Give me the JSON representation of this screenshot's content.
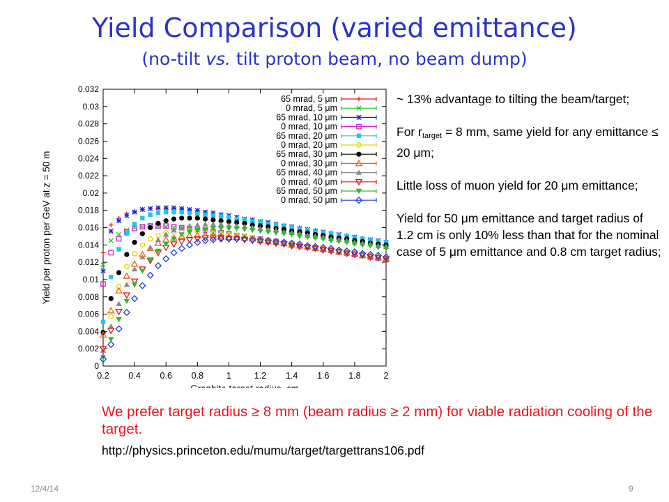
{
  "slide": {
    "title": "Yield Comparison (varied emittance)",
    "subtitle_pre": "(no-tilt ",
    "subtitle_vs": "vs.",
    "subtitle_post": " tilt proton beam, no beam dump)",
    "notes": {
      "n1": "~ 13% advantage to tilting the beam/target;",
      "n2a": "For r",
      "n2sub": "target",
      "n2b": " = 8 mm, same yield for any emittance ≤ 20  μm;",
      "n3": "Little loss of muon yield for 20 μm emittance;",
      "n4": "Yield for 50 μm emittance and target radius of 1.2 cm is only 10% less than that for the nominal case of 5 μm emittance and 0.8 cm target radius;"
    },
    "conclusion": "We prefer target radius ≥ 8 mm (beam radius  ≥ 2 mm) for viable radiation cooling of the target.",
    "reference": "http://physics.princeton.edu/mumu/target/targettrans106.pdf",
    "footer_date": "12/4/14",
    "page_number": "9"
  },
  "chart_data": {
    "type": "scatter",
    "xlabel": "Graphite target radius, cm",
    "ylabel": "Yield per proton per GeV at z = 50 m",
    "xlim": [
      0.2,
      2.0
    ],
    "ylim": [
      0,
      0.032
    ],
    "xticks": [
      0.2,
      0.4,
      0.6,
      0.8,
      1,
      1.2,
      1.4,
      1.6,
      1.8,
      2
    ],
    "xtick_labels": [
      "0.2",
      "0.4",
      "0.6",
      "0.8",
      "1",
      "1.2",
      "1.4",
      "1.6",
      "1.8",
      "2"
    ],
    "yticks": [
      0,
      0.002,
      0.004,
      0.006,
      0.008,
      0.01,
      0.012,
      0.014,
      0.016,
      0.018,
      0.02,
      0.022,
      0.024,
      0.026,
      0.028,
      0.03,
      0.032
    ],
    "ytick_labels": [
      "0",
      "0.002",
      "0.004",
      "0.006",
      "0.008",
      "0.01",
      "0.012",
      "0.014",
      "0.016",
      "0.018",
      "0.02",
      "0.022",
      "0.024",
      "0.026",
      "0.028",
      "0.03",
      "0.032"
    ],
    "legend_position": "top-right",
    "grid": false,
    "x": [
      0.2,
      0.25,
      0.3,
      0.35,
      0.4,
      0.45,
      0.5,
      0.55,
      0.6,
      0.65,
      0.7,
      0.75,
      0.8,
      0.85,
      0.9,
      0.95,
      1.0,
      1.05,
      1.1,
      1.15,
      1.2,
      1.25,
      1.3,
      1.35,
      1.4,
      1.45,
      1.5,
      1.55,
      1.6,
      1.65,
      1.7,
      1.75,
      1.8,
      1.85,
      1.9,
      1.95,
      2.0
    ],
    "series": [
      {
        "name": "65 mrad, 5 μm",
        "color": "#e8141c",
        "marker": "plus",
        "values": [
          0.0131,
          0.0163,
          0.0171,
          0.0176,
          0.0179,
          0.0181,
          0.0182,
          0.0182,
          0.0182,
          0.0182,
          0.0181,
          0.018,
          0.0179,
          0.0178,
          0.0176,
          0.0175,
          0.0173,
          0.0172,
          0.017,
          0.0169,
          0.0167,
          0.0166,
          0.0164,
          0.0163,
          0.0161,
          0.016,
          0.0158,
          0.0157,
          0.0155,
          0.0154,
          0.0152,
          0.0151,
          0.0149,
          0.0148,
          0.0146,
          0.0145,
          0.0143
        ]
      },
      {
        "name": "0 mrad, 5 μm",
        "color": "#20c020",
        "marker": "x",
        "values": [
          0.0117,
          0.0145,
          0.0152,
          0.0157,
          0.016,
          0.0161,
          0.0162,
          0.0162,
          0.0161,
          0.016,
          0.0159,
          0.0158,
          0.0157,
          0.0156,
          0.0154,
          0.0153,
          0.0152,
          0.015,
          0.0149,
          0.0147,
          0.0146,
          0.0144,
          0.0143,
          0.0141,
          0.014,
          0.0139,
          0.0137,
          0.0136,
          0.0134,
          0.0133,
          0.0131,
          0.013,
          0.0129,
          0.0127,
          0.0126,
          0.0124,
          0.0123
        ]
      },
      {
        "name": "65 mrad, 10 μm",
        "color": "#2028d8",
        "marker": "star",
        "values": [
          0.011,
          0.0156,
          0.0168,
          0.0174,
          0.0178,
          0.0181,
          0.0182,
          0.0183,
          0.0183,
          0.0183,
          0.0182,
          0.0181,
          0.018,
          0.0178,
          0.0177,
          0.0175,
          0.0174,
          0.0172,
          0.017,
          0.0169,
          0.0167,
          0.0166,
          0.0164,
          0.0162,
          0.0161,
          0.0159,
          0.0158,
          0.0156,
          0.0155,
          0.0153,
          0.0152,
          0.015,
          0.0149,
          0.0147,
          0.0146,
          0.0145,
          0.0143
        ]
      },
      {
        "name": "0 mrad, 10 μm",
        "color": "#d020d0",
        "marker": "square-open",
        "values": [
          0.0095,
          0.0131,
          0.0147,
          0.0155,
          0.0159,
          0.0161,
          0.0162,
          0.0162,
          0.0162,
          0.0161,
          0.016,
          0.0159,
          0.0158,
          0.0157,
          0.0155,
          0.0154,
          0.0153,
          0.0151,
          0.015,
          0.0148,
          0.0147,
          0.0145,
          0.0144,
          0.0142,
          0.0141,
          0.0139,
          0.0138,
          0.0136,
          0.0135,
          0.0134,
          0.0132,
          0.0131,
          0.0129,
          0.0128,
          0.0126,
          0.0125,
          0.0123
        ]
      },
      {
        "name": "65 mrad, 20 μm",
        "color": "#18c8f0",
        "marker": "square-filled",
        "values": [
          0.0051,
          0.0103,
          0.0135,
          0.0153,
          0.0164,
          0.0171,
          0.0175,
          0.0177,
          0.0178,
          0.0178,
          0.0178,
          0.0177,
          0.0176,
          0.0175,
          0.0174,
          0.0173,
          0.0172,
          0.017,
          0.0169,
          0.0167,
          0.0166,
          0.0164,
          0.0163,
          0.0161,
          0.016,
          0.0158,
          0.0157,
          0.0155,
          0.0154,
          0.0153,
          0.0151,
          0.015,
          0.0148,
          0.0147,
          0.0145,
          0.0144,
          0.0143
        ]
      },
      {
        "name": "0 mrad, 20 μm",
        "color": "#e8d800",
        "marker": "circle-open",
        "values": [
          0.0008,
          0.0057,
          0.0092,
          0.0115,
          0.013,
          0.014,
          0.0147,
          0.0151,
          0.0154,
          0.0155,
          0.0156,
          0.0156,
          0.0156,
          0.0155,
          0.0154,
          0.0153,
          0.0152,
          0.0151,
          0.015,
          0.0148,
          0.0147,
          0.0146,
          0.0144,
          0.0143,
          0.0141,
          0.014,
          0.0139,
          0.0137,
          0.0136,
          0.0134,
          0.0133,
          0.0131,
          0.013,
          0.0128,
          0.0127,
          0.0125,
          0.0124
        ]
      },
      {
        "name": "65 mrad, 30 μm",
        "color": "#000000",
        "marker": "circle-filled",
        "values": [
          0.0039,
          0.0078,
          0.0108,
          0.0129,
          0.0143,
          0.0153,
          0.016,
          0.0165,
          0.0168,
          0.017,
          0.0171,
          0.0171,
          0.0171,
          0.017,
          0.0169,
          0.0168,
          0.0167,
          0.0166,
          0.0165,
          0.0163,
          0.0162,
          0.0161,
          0.0159,
          0.0158,
          0.0156,
          0.0155,
          0.0154,
          0.0152,
          0.0151,
          0.0149,
          0.0148,
          0.0147,
          0.0145,
          0.0144,
          0.0142,
          0.0141,
          0.014
        ]
      },
      {
        "name": "0 mrad, 30 μm",
        "color": "#f06010",
        "marker": "triangle-open",
        "values": [
          0.0036,
          0.0064,
          0.0087,
          0.0104,
          0.0118,
          0.0129,
          0.0136,
          0.0142,
          0.0146,
          0.0148,
          0.015,
          0.0151,
          0.0151,
          0.0151,
          0.0151,
          0.015,
          0.0149,
          0.0149,
          0.0148,
          0.0147,
          0.0145,
          0.0144,
          0.0143,
          0.0142,
          0.014,
          0.0139,
          0.0138,
          0.0136,
          0.0135,
          0.0134,
          0.0132,
          0.0131,
          0.013,
          0.0128,
          0.0127,
          0.0126,
          0.0124
        ]
      },
      {
        "name": "65 mrad, 40 μm",
        "color": "#8a8a8a",
        "marker": "triangle-filled",
        "values": [
          0.0018,
          0.0046,
          0.0072,
          0.0094,
          0.0112,
          0.0126,
          0.0137,
          0.0146,
          0.0152,
          0.0157,
          0.016,
          0.0162,
          0.0163,
          0.0164,
          0.0164,
          0.0164,
          0.0163,
          0.0162,
          0.0161,
          0.016,
          0.0159,
          0.0158,
          0.0157,
          0.0155,
          0.0154,
          0.0153,
          0.0151,
          0.015,
          0.0149,
          0.0147,
          0.0146,
          0.0145,
          0.0143,
          0.0142,
          0.0141,
          0.0139,
          0.0138
        ]
      },
      {
        "name": "0 mrad, 40 μm",
        "color": "#e8141c",
        "marker": "triangle-down-open",
        "values": [
          0.002,
          0.0041,
          0.0063,
          0.0082,
          0.0098,
          0.0112,
          0.0122,
          0.0131,
          0.0137,
          0.0141,
          0.0144,
          0.0146,
          0.0147,
          0.0148,
          0.0148,
          0.0148,
          0.0147,
          0.0147,
          0.0146,
          0.0145,
          0.0144,
          0.0143,
          0.0142,
          0.0141,
          0.0139,
          0.0138,
          0.0137,
          0.0136,
          0.0134,
          0.0133,
          0.0132,
          0.013,
          0.0129,
          0.0128,
          0.0126,
          0.0125,
          0.0124
        ]
      },
      {
        "name": "65 mrad, 50 μm",
        "color": "#30b830",
        "marker": "triangle-down-filled",
        "values": [
          0.001,
          0.0031,
          0.0054,
          0.0075,
          0.0094,
          0.011,
          0.0123,
          0.0133,
          0.0141,
          0.0147,
          0.0152,
          0.0155,
          0.0157,
          0.0158,
          0.0159,
          0.0159,
          0.0159,
          0.0159,
          0.0158,
          0.0157,
          0.0156,
          0.0155,
          0.0154,
          0.0153,
          0.0152,
          0.015,
          0.0149,
          0.0148,
          0.0147,
          0.0145,
          0.0144,
          0.0143,
          0.0141,
          0.014,
          0.0139,
          0.0137,
          0.0136
        ]
      },
      {
        "name": "0 mrad, 50 μm",
        "color": "#1c3cd8",
        "marker": "diamond-open",
        "values": [
          0.0008,
          0.0025,
          0.0043,
          0.0062,
          0.0078,
          0.0093,
          0.0105,
          0.0116,
          0.0124,
          0.0131,
          0.0136,
          0.014,
          0.0143,
          0.0145,
          0.0146,
          0.0147,
          0.0147,
          0.0147,
          0.0147,
          0.0146,
          0.0146,
          0.0145,
          0.0144,
          0.0143,
          0.0142,
          0.0141,
          0.0139,
          0.0138,
          0.0137,
          0.0136,
          0.0134,
          0.0133,
          0.0132,
          0.013,
          0.0129,
          0.0128,
          0.0126
        ]
      }
    ]
  }
}
